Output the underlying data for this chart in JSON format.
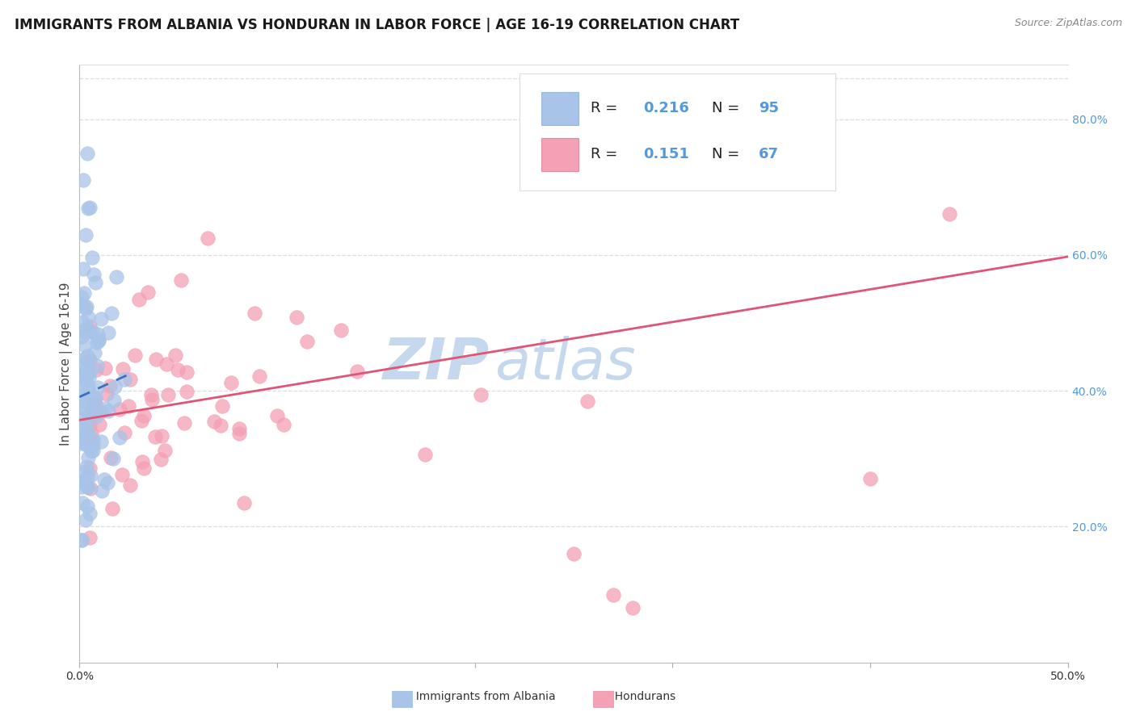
{
  "title": "IMMIGRANTS FROM ALBANIA VS HONDURAN IN LABOR FORCE | AGE 16-19 CORRELATION CHART",
  "source": "Source: ZipAtlas.com",
  "ylabel": "In Labor Force | Age 16-19",
  "xlim": [
    0.0,
    0.5
  ],
  "ylim": [
    0.0,
    0.88
  ],
  "yticks_right": [
    0.2,
    0.4,
    0.6,
    0.8
  ],
  "ytick_right_labels": [
    "20.0%",
    "40.0%",
    "60.0%",
    "80.0%"
  ],
  "albania_color": "#a8c4e8",
  "honduran_color": "#f4a0b5",
  "albania_trend_color": "#3a6fc4",
  "honduran_trend_color": "#e05575",
  "watermark_zip": "ZIP",
  "watermark_atlas": "atlas",
  "background_color": "#ffffff",
  "grid_color": "#dddddd",
  "right_tick_color": "#5599dd",
  "bottom_tick_color": "#333333",
  "title_fontsize": 12,
  "axis_label_fontsize": 11,
  "tick_fontsize": 10,
  "legend_fontsize": 13,
  "watermark_color": "#c5d8ee"
}
